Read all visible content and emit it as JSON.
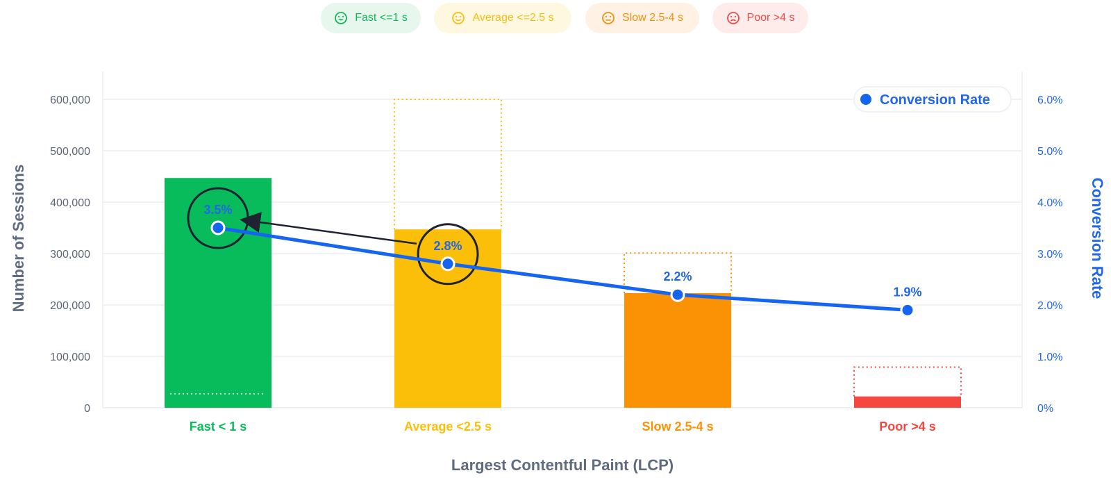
{
  "top_legend": [
    {
      "label": "Fast <=1 s",
      "color": "#13b855",
      "bg": "#e8f7ee",
      "icon": "smile-icon"
    },
    {
      "label": "Average <=2.5 s",
      "color": "#f6bd14",
      "bg": "#fff8e1",
      "icon": "smile-icon"
    },
    {
      "label": "Slow 2.5-4 s",
      "color": "#f4900f",
      "bg": "#fff1e3",
      "icon": "neutral-face-icon"
    },
    {
      "label": "Poor >4 s",
      "color": "#ef4a48",
      "bg": "#feeceb",
      "icon": "frown-icon"
    }
  ],
  "chart_data": {
    "type": "bar+line",
    "categories": [
      "Fast < 1 s",
      "Average <2.5 s",
      "Slow 2.5-4 s",
      "Poor >4 s"
    ],
    "category_colors": [
      "#08bc5c",
      "#fbbf0a",
      "#fb9104",
      "#f5473f"
    ],
    "series": [
      {
        "name": "Number of Sessions",
        "type": "bar",
        "axis": "left",
        "values": [
          447000,
          347000,
          223000,
          22000
        ]
      },
      {
        "name": "Reference sessions (dotted outline)",
        "type": "bar-outline",
        "axis": "left",
        "values": [
          27000,
          600000,
          301000,
          79000
        ]
      },
      {
        "name": "Conversion Rate",
        "type": "line",
        "axis": "right",
        "values": [
          3.5,
          2.8,
          2.2,
          1.9
        ],
        "color": "#1565f0"
      }
    ],
    "data_labels": [
      "3.5%",
      "2.8%",
      "2.2%",
      "1.9%"
    ],
    "xlabel": "Largest Contentful Paint (LCP)",
    "ylabel": "Number of Sessions",
    "ylabel_right": "Conversion Rate",
    "ylim": [
      0,
      650000
    ],
    "ylim_right": [
      0,
      6.5
    ],
    "yticks_left": [
      "0",
      "100,000",
      "200,000",
      "300,000",
      "400,000",
      "500,000",
      "600,000"
    ],
    "yticks_left_values": [
      0,
      100000,
      200000,
      300000,
      400000,
      500000,
      600000
    ],
    "yticks_right": [
      "0%",
      "1.0%",
      "2.0%",
      "3.0%",
      "4.0%",
      "5.0%",
      "6.0%"
    ],
    "yticks_right_values": [
      0,
      1,
      2,
      3,
      4,
      5,
      6
    ],
    "legend": {
      "label": "Conversion Rate",
      "position": "top-right"
    },
    "annotations": {
      "highlighted_points": [
        "3.5%",
        "2.8%"
      ],
      "arrow": "from 2.8% to 3.5%"
    }
  }
}
